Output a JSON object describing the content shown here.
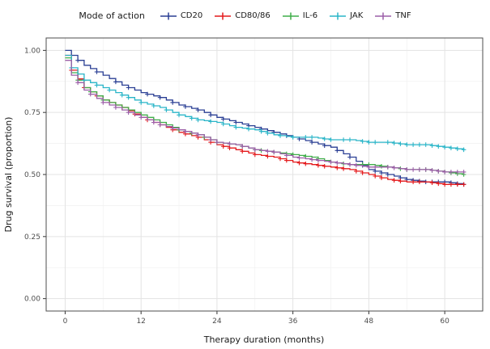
{
  "legend": {
    "title": "Mode of action"
  },
  "panel": {
    "background": "#ffffff",
    "border_color": "#4d4d4d",
    "grid_major_color": "#e3e3e3",
    "grid_minor_color": "#f1f1f1"
  },
  "chart_data": {
    "type": "line",
    "subtype": "kaplan-meier-step-with-censor-marks",
    "title": "",
    "xlabel": "Therapy duration (months)",
    "ylabel": "Drug survival (proportion)",
    "xlim": [
      -3,
      66
    ],
    "ylim": [
      -0.05,
      1.05
    ],
    "x_ticks": [
      0,
      12,
      24,
      36,
      48,
      60
    ],
    "x_minor_ticks": [
      6,
      18,
      30,
      42,
      54
    ],
    "y_ticks": [
      0,
      0.25,
      0.5,
      0.75,
      1
    ],
    "y_tick_labels": [
      "0.00",
      "0.25",
      "0.50",
      "0.75",
      "1.00"
    ],
    "y_minor_ticks": [
      0.125,
      0.375,
      0.625,
      0.875
    ],
    "grid": true,
    "legend_position": "top",
    "times": [
      0,
      1,
      3,
      6,
      9,
      12,
      15,
      18,
      21,
      24,
      27,
      30,
      33,
      36,
      39,
      42,
      45,
      48,
      51,
      54,
      57,
      60,
      63
    ],
    "series": [
      {
        "name": "CD20",
        "color": "#2a3f94",
        "times": [
          0,
          1,
          3,
          6,
          9,
          12,
          15,
          18,
          21,
          24,
          27,
          30,
          33,
          36,
          39,
          42,
          45,
          48,
          51,
          54,
          57,
          60,
          63
        ],
        "survival": [
          1.0,
          0.98,
          0.94,
          0.9,
          0.86,
          0.83,
          0.81,
          0.78,
          0.76,
          0.73,
          0.71,
          0.69,
          0.67,
          0.65,
          0.63,
          0.61,
          0.57,
          0.52,
          0.5,
          0.48,
          0.47,
          0.47,
          0.46
        ],
        "censor_times": [
          2,
          5,
          8,
          10,
          13,
          15,
          17,
          19,
          21,
          23,
          25,
          27,
          29,
          31,
          33,
          35,
          37,
          39,
          41,
          43,
          45,
          47,
          49,
          50,
          51,
          53,
          54,
          55,
          56,
          57,
          58,
          59,
          60,
          61,
          62,
          63
        ]
      },
      {
        "name": "CD80/86",
        "color": "#e41a1c",
        "times": [
          0,
          1,
          3,
          6,
          9,
          12,
          15,
          18,
          21,
          24,
          27,
          30,
          33,
          36,
          39,
          42,
          45,
          48,
          51,
          54,
          57,
          60,
          63
        ],
        "survival": [
          0.98,
          0.92,
          0.85,
          0.8,
          0.77,
          0.73,
          0.7,
          0.67,
          0.65,
          0.62,
          0.6,
          0.58,
          0.57,
          0.55,
          0.54,
          0.53,
          0.52,
          0.5,
          0.48,
          0.47,
          0.47,
          0.46,
          0.46
        ],
        "censor_times": [
          1,
          3,
          5,
          7,
          9,
          11,
          13,
          15,
          17,
          19,
          21,
          23,
          25,
          26,
          28,
          30,
          32,
          34,
          35,
          37,
          38,
          40,
          41,
          43,
          44,
          46,
          47,
          49,
          50,
          52,
          53,
          55,
          56,
          58,
          59,
          60,
          61,
          62,
          63
        ]
      },
      {
        "name": "IL-6",
        "color": "#3fae49",
        "times": [
          0,
          1,
          3,
          6,
          9,
          12,
          15,
          18,
          21,
          24,
          27,
          30,
          33,
          36,
          39,
          42,
          45,
          48,
          51,
          54,
          57,
          60,
          63
        ],
        "survival": [
          0.97,
          0.91,
          0.85,
          0.8,
          0.77,
          0.74,
          0.71,
          0.68,
          0.66,
          0.63,
          0.62,
          0.6,
          0.59,
          0.58,
          0.57,
          0.55,
          0.54,
          0.54,
          0.53,
          0.52,
          0.52,
          0.51,
          0.5
        ],
        "censor_times": [
          2,
          4,
          6,
          8,
          10,
          12,
          14,
          16,
          18,
          20,
          22,
          24,
          26,
          28,
          30,
          31,
          33,
          35,
          36,
          38,
          40,
          42,
          44,
          45,
          47,
          48,
          50,
          51,
          53,
          54,
          56,
          57,
          58,
          59,
          60,
          61,
          62,
          63
        ]
      },
      {
        "name": "JAK",
        "color": "#2ab5c8",
        "times": [
          0,
          1,
          3,
          6,
          9,
          12,
          15,
          18,
          21,
          24,
          27,
          30,
          33,
          36,
          39,
          42,
          45,
          48,
          51,
          54,
          57,
          60,
          63
        ],
        "survival": [
          0.98,
          0.93,
          0.88,
          0.85,
          0.82,
          0.79,
          0.77,
          0.74,
          0.72,
          0.71,
          0.69,
          0.68,
          0.66,
          0.65,
          0.65,
          0.64,
          0.64,
          0.63,
          0.63,
          0.62,
          0.62,
          0.61,
          0.6
        ],
        "censor_times": [
          1,
          3,
          5,
          7,
          9,
          10,
          12,
          14,
          16,
          18,
          20,
          21,
          23,
          25,
          27,
          29,
          31,
          32,
          34,
          36,
          38,
          39,
          41,
          42,
          44,
          45,
          47,
          48,
          49,
          51,
          52,
          53,
          54,
          55,
          56,
          57,
          58,
          59,
          60,
          61,
          62,
          63
        ]
      },
      {
        "name": "TNF",
        "color": "#9c5fa8",
        "times": [
          0,
          1,
          3,
          6,
          9,
          12,
          15,
          18,
          21,
          24,
          27,
          30,
          33,
          36,
          39,
          42,
          45,
          48,
          51,
          54,
          57,
          60,
          63
        ],
        "survival": [
          0.96,
          0.9,
          0.84,
          0.79,
          0.76,
          0.73,
          0.7,
          0.68,
          0.66,
          0.63,
          0.62,
          0.6,
          0.59,
          0.57,
          0.56,
          0.55,
          0.54,
          0.53,
          0.53,
          0.52,
          0.52,
          0.51,
          0.51
        ],
        "censor_times": [
          2,
          4,
          6,
          8,
          10,
          12,
          14,
          15,
          17,
          19,
          21,
          23,
          24,
          26,
          28,
          30,
          32,
          33,
          35,
          37,
          39,
          40,
          42,
          43,
          45,
          46,
          48,
          49,
          51,
          52,
          54,
          55,
          56,
          57,
          58,
          59,
          60,
          61,
          62,
          63
        ]
      }
    ]
  }
}
